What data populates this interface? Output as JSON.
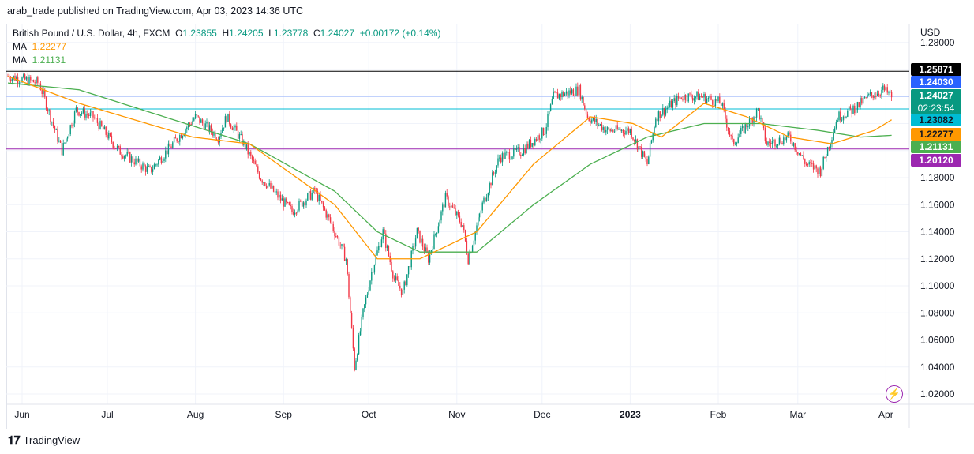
{
  "published": "arab_trade published on TradingView.com, Apr 03, 2023 14:36 UTC",
  "legend": {
    "symbol": "British Pound / U.S. Dollar, 4h, FXCM",
    "o_label": "O",
    "o": "1.23855",
    "h_label": "H",
    "h": "1.24205",
    "l_label": "L",
    "l": "1.23778",
    "c_label": "C",
    "c": "1.24027",
    "change": "+0.00172 (+0.14%)",
    "ma1_label": "MA",
    "ma1": "1.22277",
    "ma2_label": "MA",
    "ma2": "1.21131"
  },
  "footer": {
    "brand": "TradingView"
  },
  "colors": {
    "up": "#089981",
    "down": "#f23645",
    "ma1": "#ff9800",
    "ma2": "#4caf50"
  },
  "chart_data": {
    "type": "candlestick",
    "currency": "USD",
    "ylim": [
      1.01,
      1.285
    ],
    "y_ticks": [
      "1.28000",
      "1.18000",
      "1.16000",
      "1.14000",
      "1.12000",
      "1.10000",
      "1.08000",
      "1.06000",
      "1.04000",
      "1.02000"
    ],
    "x_ticks": [
      {
        "label": "Jun",
        "day": 0
      },
      {
        "label": "Jul",
        "day": 30
      },
      {
        "label": "Aug",
        "day": 61
      },
      {
        "label": "Sep",
        "day": 92
      },
      {
        "label": "Oct",
        "day": 122
      },
      {
        "label": "Nov",
        "day": 153
      },
      {
        "label": "Dec",
        "day": 183
      },
      {
        "label": "2023",
        "day": 214
      },
      {
        "label": "Feb",
        "day": 245
      },
      {
        "label": "Mar",
        "day": 273
      },
      {
        "label": "Apr",
        "day": 304
      }
    ],
    "price_path": [
      [
        -5,
        1.255
      ],
      [
        6,
        1.25
      ],
      [
        10,
        1.225
      ],
      [
        14,
        1.2
      ],
      [
        19,
        1.23
      ],
      [
        25,
        1.225
      ],
      [
        34,
        1.2
      ],
      [
        45,
        1.185
      ],
      [
        53,
        1.205
      ],
      [
        61,
        1.225
      ],
      [
        69,
        1.21
      ],
      [
        72,
        1.225
      ],
      [
        78,
        1.205
      ],
      [
        84,
        1.18
      ],
      [
        95,
        1.155
      ],
      [
        103,
        1.17
      ],
      [
        109,
        1.145
      ],
      [
        114,
        1.12
      ],
      [
        117,
        1.04
      ],
      [
        120,
        1.08
      ],
      [
        123,
        1.11
      ],
      [
        127,
        1.14
      ],
      [
        131,
        1.105
      ],
      [
        134,
        1.095
      ],
      [
        139,
        1.14
      ],
      [
        143,
        1.12
      ],
      [
        149,
        1.165
      ],
      [
        155,
        1.145
      ],
      [
        157,
        1.12
      ],
      [
        162,
        1.16
      ],
      [
        168,
        1.195
      ],
      [
        176,
        1.2
      ],
      [
        184,
        1.215
      ],
      [
        187,
        1.24
      ],
      [
        196,
        1.245
      ],
      [
        199,
        1.225
      ],
      [
        206,
        1.215
      ],
      [
        214,
        1.215
      ],
      [
        220,
        1.19
      ],
      [
        223,
        1.225
      ],
      [
        232,
        1.24
      ],
      [
        239,
        1.24
      ],
      [
        246,
        1.235
      ],
      [
        250,
        1.205
      ],
      [
        259,
        1.23
      ],
      [
        262,
        1.205
      ],
      [
        270,
        1.21
      ],
      [
        276,
        1.19
      ],
      [
        281,
        1.185
      ],
      [
        287,
        1.225
      ],
      [
        292,
        1.23
      ],
      [
        298,
        1.24
      ],
      [
        303,
        1.245
      ],
      [
        306,
        1.2403
      ]
    ],
    "ma1_path": [
      [
        -5,
        1.255
      ],
      [
        20,
        1.235
      ],
      [
        60,
        1.21
      ],
      [
        80,
        1.205
      ],
      [
        110,
        1.16
      ],
      [
        125,
        1.12
      ],
      [
        140,
        1.12
      ],
      [
        160,
        1.14
      ],
      [
        180,
        1.19
      ],
      [
        200,
        1.225
      ],
      [
        215,
        1.22
      ],
      [
        225,
        1.21
      ],
      [
        240,
        1.235
      ],
      [
        255,
        1.225
      ],
      [
        270,
        1.21
      ],
      [
        285,
        1.205
      ],
      [
        300,
        1.215
      ],
      [
        306,
        1.2228
      ]
    ],
    "ma2_path": [
      [
        -5,
        1.25
      ],
      [
        20,
        1.245
      ],
      [
        50,
        1.225
      ],
      [
        80,
        1.205
      ],
      [
        110,
        1.17
      ],
      [
        125,
        1.14
      ],
      [
        140,
        1.125
      ],
      [
        160,
        1.125
      ],
      [
        180,
        1.16
      ],
      [
        200,
        1.19
      ],
      [
        220,
        1.21
      ],
      [
        240,
        1.22
      ],
      [
        260,
        1.22
      ],
      [
        280,
        1.215
      ],
      [
        295,
        1.21
      ],
      [
        306,
        1.2113
      ]
    ],
    "hlines": [
      {
        "value": 1.25871,
        "label": "1.25871",
        "color": "#000000"
      },
      {
        "value": 1.2403,
        "label": "1.24030",
        "color": "#2962ff"
      },
      {
        "value": 1.23082,
        "label": "1.23082",
        "color": "#00bcd4"
      },
      {
        "value": 1.2012,
        "label": "1.20120",
        "color": "#9c27b0"
      }
    ],
    "price_labels": [
      {
        "value": 1.25871,
        "text": "1.25871",
        "bg": "#000000",
        "fg": "#ffffff"
      },
      {
        "value": 1.2403,
        "text": "1.24030",
        "bg": "#2962ff",
        "fg": "#ffffff"
      },
      {
        "value": 1.24027,
        "text": "1.24027",
        "sub": "02:23:54",
        "bg": "#089981",
        "fg": "#ffffff"
      },
      {
        "value": 1.23082,
        "text": "1.23082",
        "bg": "#00bcd4",
        "fg": "#131722"
      },
      {
        "value": 1.22277,
        "text": "1.22277",
        "bg": "#ff9800",
        "fg": "#131722"
      },
      {
        "value": 1.21131,
        "text": "1.21131",
        "bg": "#4caf50",
        "fg": "#ffffff"
      },
      {
        "value": 1.2012,
        "text": "1.20120",
        "bg": "#9c27b0",
        "fg": "#ffffff"
      }
    ]
  }
}
